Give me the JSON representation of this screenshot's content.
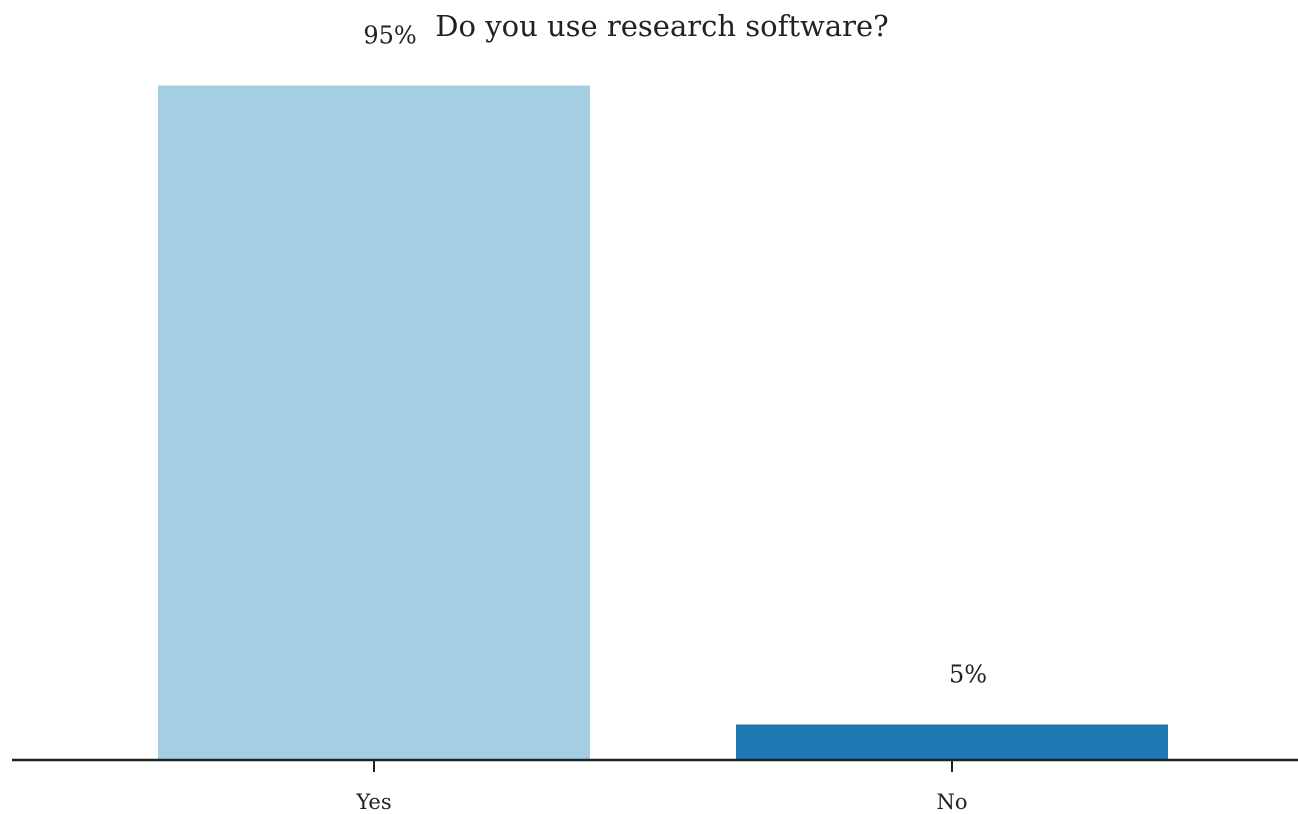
{
  "chart_data": {
    "type": "bar",
    "title": "Do you use research software?",
    "categories": [
      "Yes",
      "No"
    ],
    "values": [
      95,
      5
    ],
    "value_labels": [
      "95%",
      "5%"
    ],
    "colors": [
      "#a6cee3",
      "#1f78b4"
    ],
    "xlabel": "",
    "ylabel": "",
    "ylim": [
      0,
      100
    ],
    "grid": false,
    "legend": "none",
    "axis_color": "#222222"
  }
}
